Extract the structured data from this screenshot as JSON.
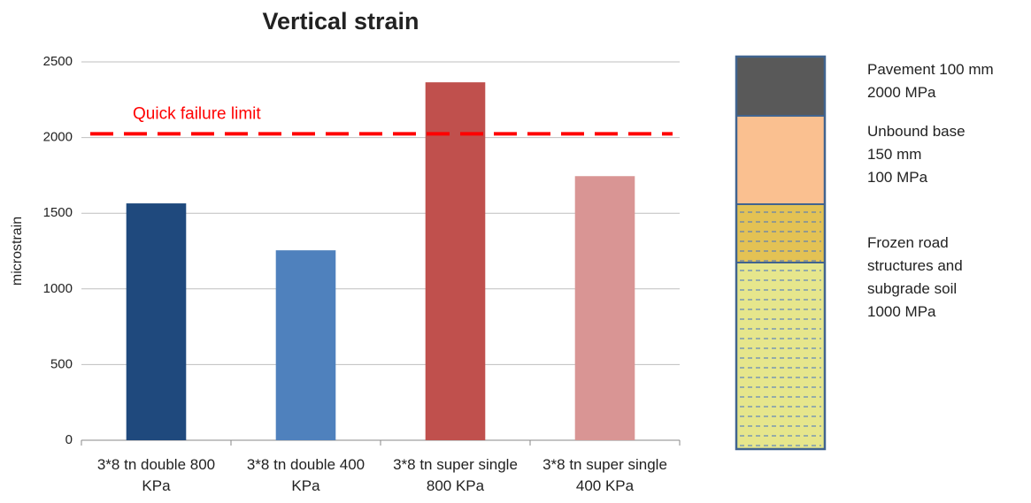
{
  "chart_data": {
    "type": "bar",
    "title": "Vertical strain",
    "y_label": "microstrain",
    "categories": [
      "3*8 tn double 800 KPa",
      "3*8 tn double 400 KPa",
      "3*8 tn super single 800 KPa",
      "3*8 tn super single 400 KPa"
    ],
    "values": [
      1565,
      1255,
      2365,
      1745
    ],
    "colors": [
      "#1f497d",
      "#4f81bd",
      "#c0504d",
      "#d99594"
    ],
    "ylim": [
      0,
      2500
    ],
    "yticks": [
      0,
      500,
      1000,
      1500,
      2000,
      2500
    ],
    "grid": true,
    "reference_lines": [
      {
        "value": 2025,
        "label": "Quick failure limit",
        "color": "#ff0000"
      }
    ]
  },
  "layer_diagram": {
    "labels": [
      [
        "Pavement 100 mm",
        "2000 MPa"
      ],
      [
        "Unbound base",
        "150 mm",
        "100 MPa"
      ],
      [
        "Frozen road",
        "structures and",
        "subgrade soil",
        "1000 MPa"
      ]
    ]
  }
}
